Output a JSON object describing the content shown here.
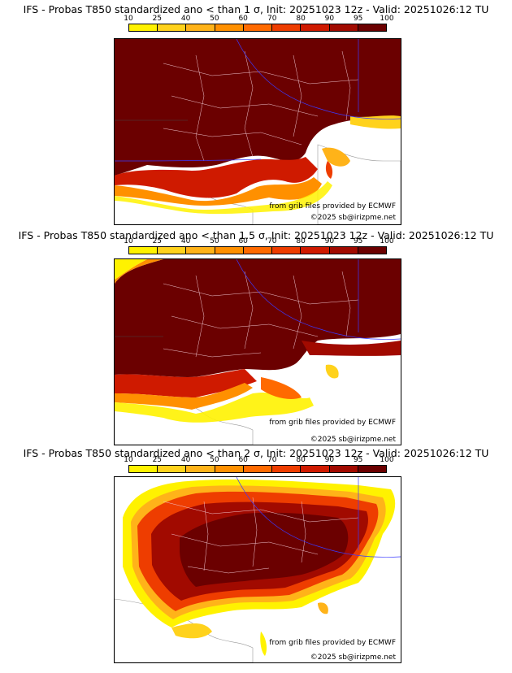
{
  "legend": {
    "ticks": [
      "10",
      "25",
      "40",
      "50",
      "60",
      "70",
      "80",
      "90",
      "95",
      "100"
    ],
    "colors": [
      "#fff200",
      "#ffd21c",
      "#ffb319",
      "#ff9000",
      "#ff6a00",
      "#ee3d00",
      "#cf1a00",
      "#a10a00",
      "#6b0000"
    ]
  },
  "panels": [
    {
      "title": "IFS - Probas T850  standardized ano < than 1 σ, Init: 20251023 12z - Valid: 20251026:12 TU",
      "source_text": "from grib files provided by ECMWF",
      "copyright": "©2025 sb@irizpme.net"
    },
    {
      "title": "IFS - Probas T850  standardized ano < than 1.5 σ, Init: 20251023 12z - Valid: 20251026:12 TU",
      "source_text": "from grib files provided by ECMWF",
      "copyright": "©2025 sb@irizpme.net"
    },
    {
      "title": "IFS - Probas T850  standardized ano < than 2 σ, Init: 20251023 12z - Valid: 20251026:12 TU",
      "source_text": "from grib files provided by ECMWF",
      "copyright": "©2025 sb@irizpme.net"
    }
  ]
}
